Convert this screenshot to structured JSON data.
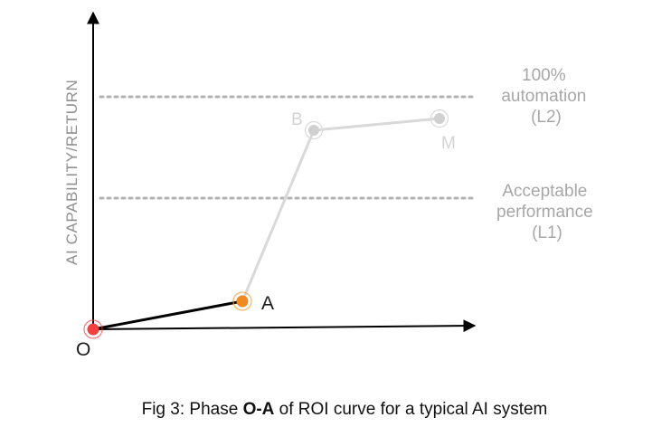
{
  "figure": {
    "caption_prefix": "Fig 3: Phase ",
    "caption_bold": "O-A",
    "caption_suffix": " of ROI curve for a typical AI system",
    "ylabel": "AI CAPABILITY/RETURN"
  },
  "reference_lines": [
    {
      "id": "l2",
      "label_lines": [
        "100%",
        "automation",
        "(L2)"
      ]
    },
    {
      "id": "l1",
      "label_lines": [
        "Acceptable",
        "performance",
        "(L1)"
      ]
    }
  ],
  "points": [
    {
      "id": "O",
      "label": "O",
      "color": "#f04040",
      "state": "origin"
    },
    {
      "id": "A",
      "label": "A",
      "color": "#f08a20",
      "state": "active"
    },
    {
      "id": "B",
      "label": "B",
      "color": "#d0d0d0",
      "state": "future"
    },
    {
      "id": "M",
      "label": "M",
      "color": "#d0d0d0",
      "state": "future"
    }
  ],
  "colors": {
    "active_segment": "#000000",
    "future_segment": "#d9d9d9",
    "reference_line": "#b3b3b3"
  }
}
